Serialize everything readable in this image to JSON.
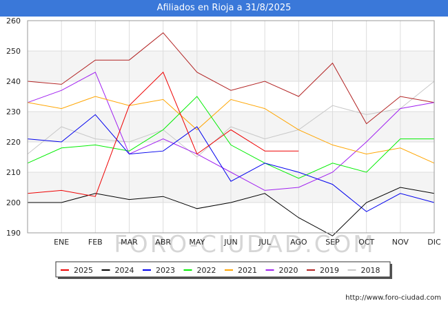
{
  "title": "Afiliados en Rioja a 31/8/2025",
  "footer": "http://www.foro-ciudad.com",
  "watermark": "FORO-CIUDAD.COM",
  "chart_data": {
    "type": "line",
    "title": "Afiliados en Rioja a 31/8/2025",
    "categories": [
      "",
      "ENE",
      "FEB",
      "MAR",
      "ABR",
      "MAY",
      "JUN",
      "JUL",
      "AGO",
      "SEP",
      "OCT",
      "NOV",
      "DIC"
    ],
    "ylim": [
      190,
      260
    ],
    "yticks": [
      190,
      200,
      210,
      220,
      230,
      240,
      250,
      260
    ],
    "grid": true,
    "legend_position": "bottom",
    "series": [
      {
        "name": "2025",
        "color": "#ee0000",
        "values": [
          203,
          204,
          202,
          232,
          243,
          216,
          224,
          217,
          217,
          null,
          null,
          null,
          null
        ]
      },
      {
        "name": "2024",
        "color": "#000000",
        "values": [
          200,
          200,
          203,
          201,
          202,
          198,
          200,
          203,
          195,
          189,
          200,
          205,
          203
        ]
      },
      {
        "name": "2023",
        "color": "#0000ee",
        "values": [
          221,
          220,
          229,
          216,
          217,
          225,
          207,
          213,
          210,
          206,
          197,
          203,
          200
        ]
      },
      {
        "name": "2022",
        "color": "#00ee00",
        "values": [
          213,
          218,
          219,
          217,
          224,
          235,
          219,
          213,
          208,
          213,
          210,
          221,
          221
        ]
      },
      {
        "name": "2021",
        "color": "#ffa500",
        "values": [
          233,
          231,
          235,
          232,
          234,
          224,
          234,
          231,
          224,
          219,
          216,
          218,
          213
        ]
      },
      {
        "name": "2020",
        "color": "#a020f0",
        "values": [
          233,
          237,
          243,
          216,
          221,
          216,
          210,
          204,
          205,
          210,
          220,
          231,
          233
        ]
      },
      {
        "name": "2019",
        "color": "#b22222",
        "values": [
          240,
          239,
          247,
          247,
          256,
          243,
          237,
          240,
          235,
          246,
          226,
          235,
          233
        ]
      },
      {
        "name": "2018",
        "color": "#c8c8c8",
        "values": [
          216,
          225,
          221,
          220,
          224,
          215,
          225,
          221,
          224,
          232,
          229,
          231,
          240
        ]
      }
    ]
  }
}
